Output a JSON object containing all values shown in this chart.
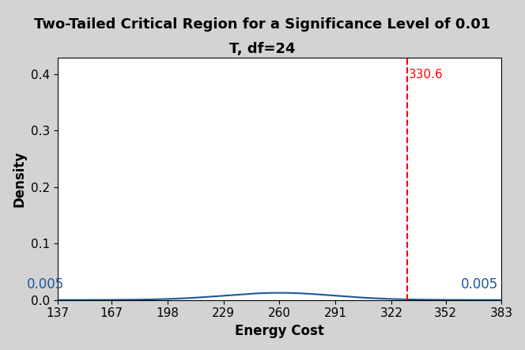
{
  "title_line1": "Two-Tailed Critical Region for a Significance Level of 0.01",
  "title_line2": "T, df=24",
  "xlabel": "Energy Cost",
  "ylabel": "Density",
  "mean": 260,
  "scale": 31,
  "df": 24,
  "alpha": 0.01,
  "sample_stat": 330.6,
  "xticks": [
    137,
    167,
    198,
    229,
    260,
    291,
    322,
    352,
    383
  ],
  "xlim": [
    137,
    383
  ],
  "ylim": [
    0,
    0.43
  ],
  "yticks": [
    0.0,
    0.1,
    0.2,
    0.3,
    0.4
  ],
  "alpha_label": "0.005",
  "curve_color": "#1f5799",
  "fill_color": "#8b0000",
  "dashed_color": "red",
  "background_color": "#d3d3d3",
  "plot_bg_color": "#ffffff",
  "title_fontsize": 13,
  "label_fontsize": 12,
  "tick_fontsize": 11
}
